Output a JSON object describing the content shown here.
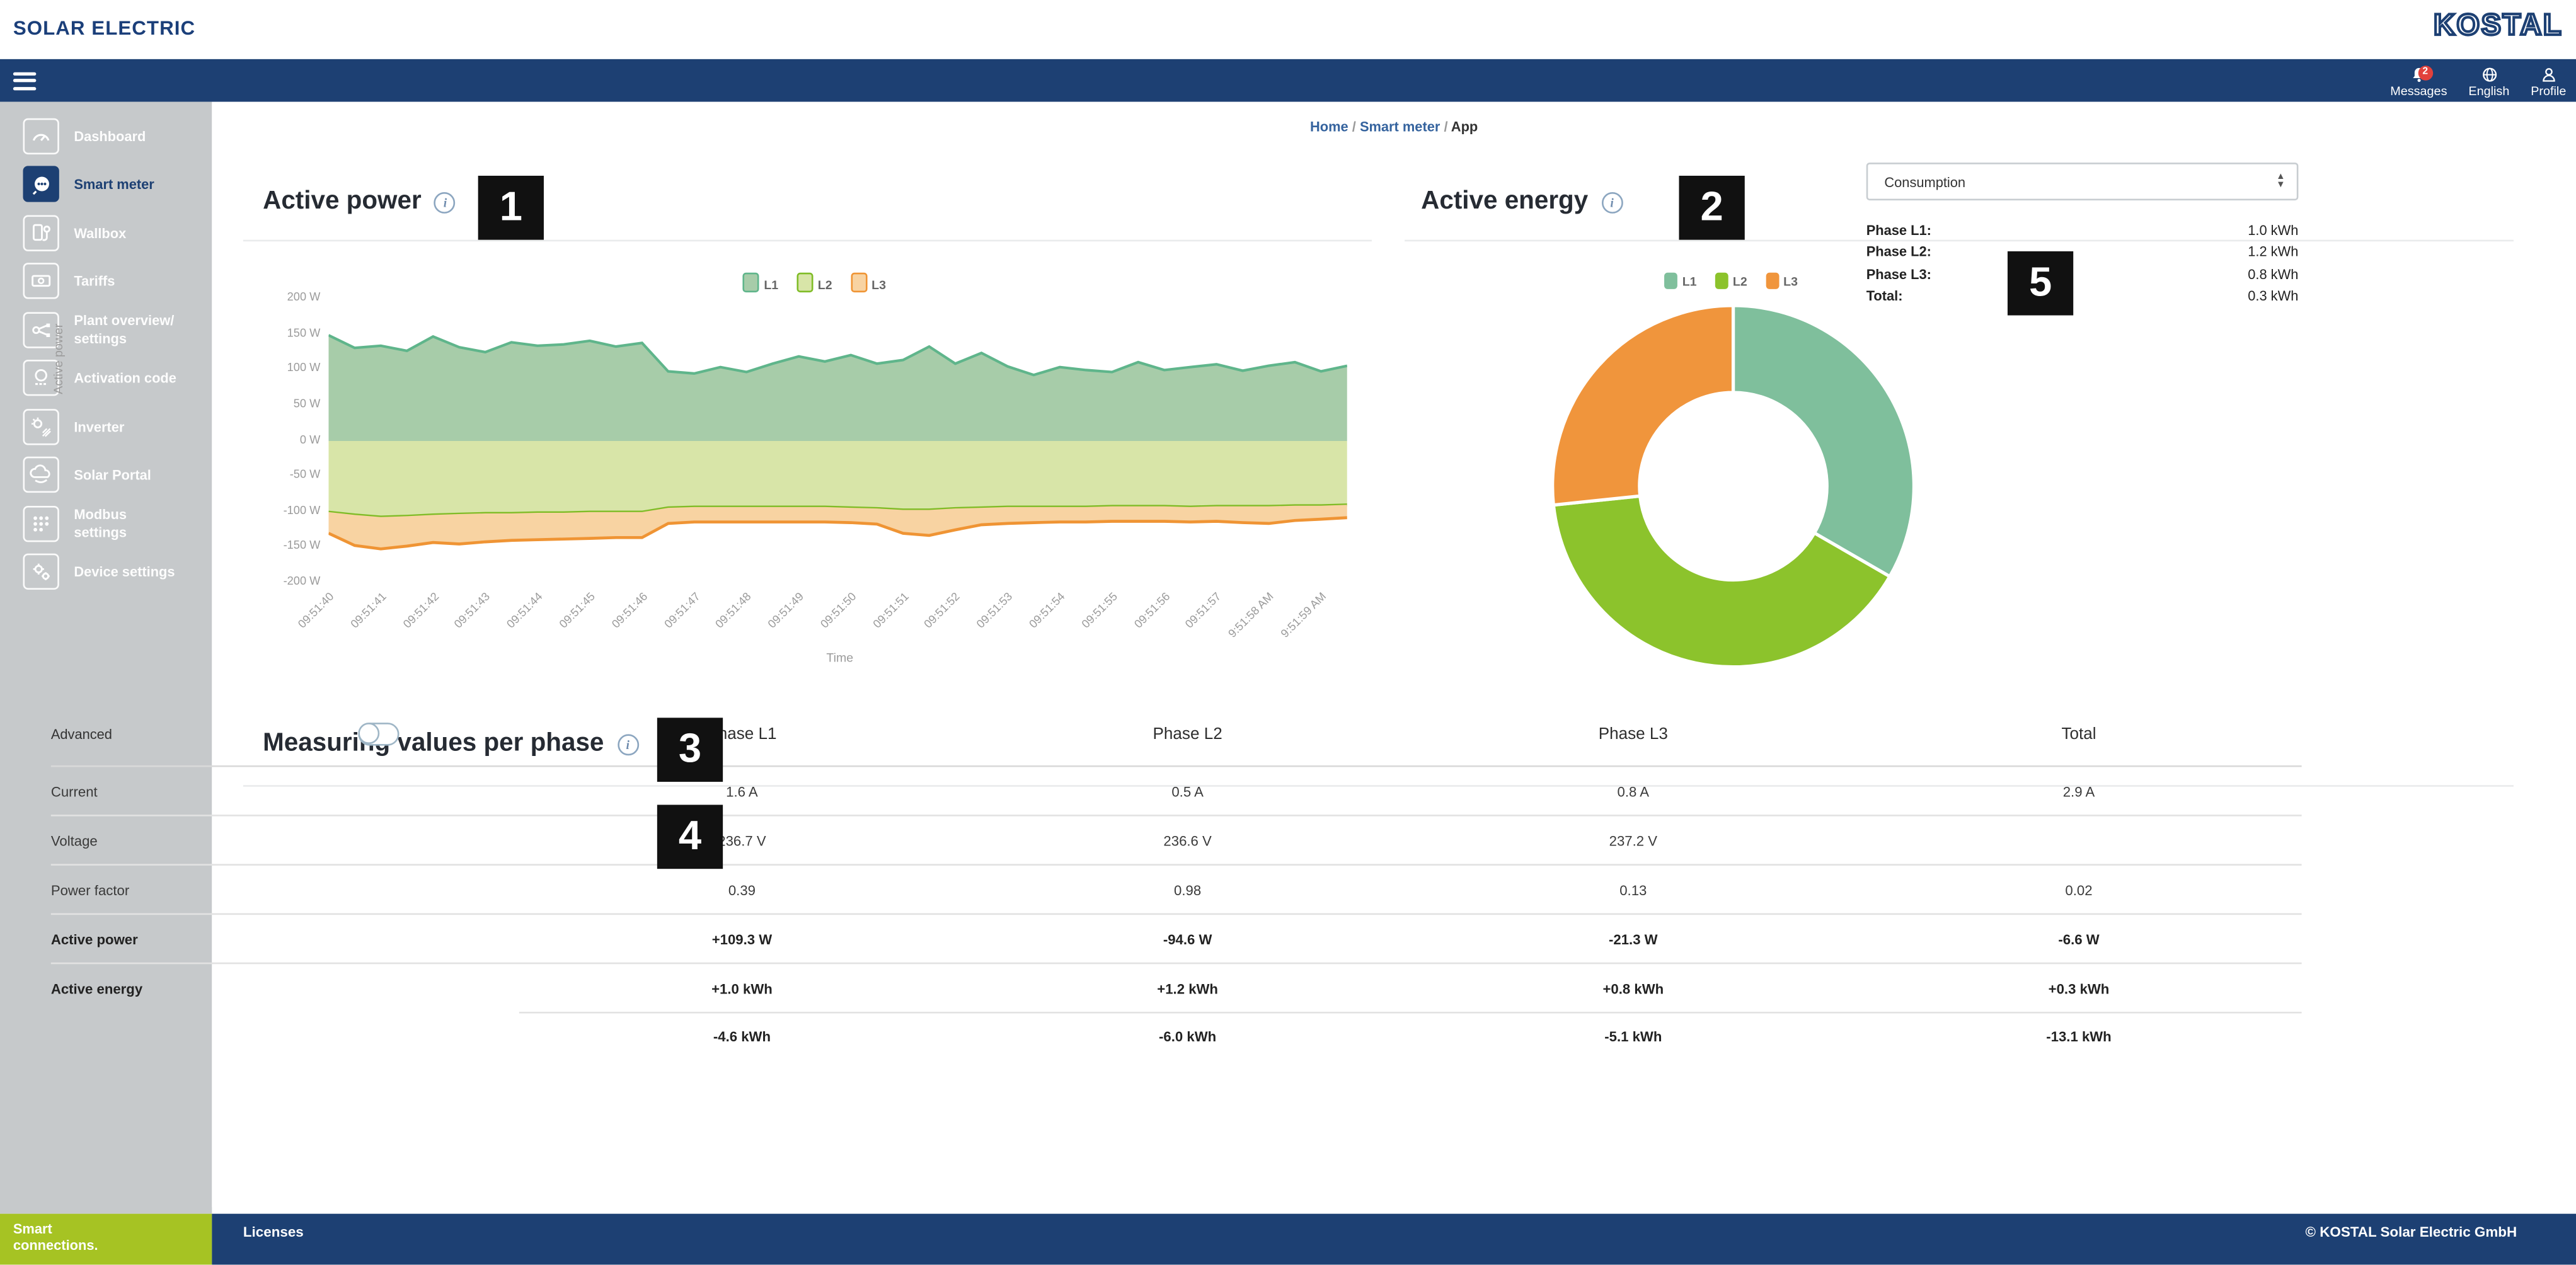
{
  "brand": {
    "logo_left": "SOLAR ELECTRIC",
    "logo_right": "KOSTAL"
  },
  "topbar": {
    "messages": {
      "label": "Messages",
      "badge": "2"
    },
    "language": {
      "label": "English"
    },
    "profile": {
      "label": "Profile"
    }
  },
  "sidebar": {
    "items": [
      {
        "label": "Dashboard",
        "icon": "gauge-icon",
        "active": false
      },
      {
        "label": "Smart meter",
        "icon": "smart-meter-icon",
        "active": true
      },
      {
        "label": "Wallbox",
        "icon": "wallbox-icon",
        "active": false
      },
      {
        "label": "Tariffs",
        "icon": "tariffs-icon",
        "active": false
      },
      {
        "label": "Plant overview/ settings",
        "icon": "plant-overview-icon",
        "active": false
      },
      {
        "label": "Activation code",
        "icon": "activation-code-icon",
        "active": false
      },
      {
        "label": "Inverter",
        "icon": "inverter-icon",
        "active": false
      },
      {
        "label": "Solar Portal",
        "icon": "solar-portal-icon",
        "active": false
      },
      {
        "label": "Modbus settings",
        "icon": "modbus-icon",
        "active": false
      },
      {
        "label": "Device settings",
        "icon": "device-settings-icon",
        "active": false
      }
    ]
  },
  "breadcrumb": {
    "items": [
      "Home",
      "Smart meter",
      "App"
    ],
    "separator": "/"
  },
  "annotations": {
    "n1": "1",
    "n2": "2",
    "n3": "3",
    "n4": "4",
    "n5": "5"
  },
  "active_power_card": {
    "title": "Active power"
  },
  "active_energy_card": {
    "title": "Active energy",
    "select_value": "Consumption",
    "rows": [
      {
        "label": "Phase L1:",
        "value": "1.0 kWh"
      },
      {
        "label": "Phase L2:",
        "value": "1.2 kWh"
      },
      {
        "label": "Phase L3:",
        "value": "0.8 kWh"
      },
      {
        "label": "Total:",
        "value": "0.3 kWh"
      }
    ]
  },
  "measuring_card": {
    "title": "Measuring values per phase",
    "advanced_label": "Advanced",
    "advanced_on": false,
    "columns": [
      "Phase L1",
      "Phase L2",
      "Phase L3",
      "Total"
    ],
    "rows": [
      {
        "label": "Current",
        "values": [
          "1.6 A",
          "0.5 A",
          "0.8 A",
          "2.9 A"
        ],
        "bold": false
      },
      {
        "label": "Voltage",
        "values": [
          "236.7 V",
          "236.6 V",
          "237.2 V",
          ""
        ],
        "bold": false
      },
      {
        "label": "Power factor",
        "values": [
          "0.39",
          "0.98",
          "0.13",
          "0.02"
        ],
        "bold": false
      },
      {
        "label": "Active power",
        "values": [
          "+109.3 W",
          "-94.6 W",
          "-21.3 W",
          "-6.6 W"
        ],
        "bold": true
      },
      {
        "label": "Active energy",
        "values": [
          "+1.0 kWh",
          "+1.2 kWh",
          "+0.8 kWh",
          "+0.3 kWh"
        ],
        "bold": true
      },
      {
        "label": "",
        "values": [
          "-4.6 kWh",
          "-6.0 kWh",
          "-5.1 kWh",
          "-13.1 kWh"
        ],
        "bold": true,
        "partial_border": true
      }
    ]
  },
  "footer": {
    "tagline": "Smart connections.",
    "licenses": "Licenses",
    "copyright": "© KOSTAL Solar Electric GmbH"
  },
  "colors": {
    "app_blue": "#1d4073",
    "sidebar_gray": "#c6c9cb",
    "footer_green": "#a6c323",
    "badge_red": "#e2413c",
    "link_blue": "#35639e",
    "l1_stroke": "#5fb58b",
    "l1_fill": "#a7cca9",
    "l2_stroke": "#7fbc26",
    "l2_fill": "#d8e5a8",
    "l3_stroke": "#ef9434",
    "l3_fill": "#f8d3a2",
    "donut_l1": "#7fbf9c",
    "donut_l2": "#8cc32c",
    "donut_l3": "#f0953c"
  },
  "chart_data": [
    {
      "type": "area",
      "title": "Active power",
      "xlabel": "Time",
      "ylabel": "Active power",
      "ylim": [
        -200,
        200
      ],
      "ytick_labels": [
        "200 W",
        "150 W",
        "100 W",
        "50 W",
        "0 W",
        "-50 W",
        "-100 W",
        "-150 W",
        "-200 W"
      ],
      "x_categories": [
        "09:51:40",
        "09:51:41",
        "09:51:42",
        "09:51:43",
        "09:51:44",
        "09:51:45",
        "09:51:46",
        "09:51:47",
        "09:51:48",
        "09:51:49",
        "09:51:50",
        "09:51:51",
        "09:51:52",
        "09:51:53",
        "09:51:54",
        "09:51:55",
        "09:51:56",
        "09:51:57",
        "9:51:58 AM",
        "9:51:59 AM"
      ],
      "sample_step_seconds": 0.5,
      "stacking": "L1 positive standalone; L2 and L3 stacked below zero",
      "legend": [
        "L1",
        "L2",
        "L3"
      ],
      "grid": false,
      "series": [
        {
          "name": "L1",
          "values": [
            149,
            131,
            134,
            127,
            147,
            132,
            125,
            139,
            134,
            136,
            141,
            133,
            138,
            98,
            95,
            104,
            97,
            109,
            119,
            112,
            121,
            109,
            114,
            133,
            109,
            124,
            105,
            93,
            104,
            100,
            97,
            111,
            100,
            104,
            108,
            99,
            106,
            111,
            98,
            106
          ]
        },
        {
          "name": "L2",
          "values": [
            -100,
            -104,
            -107,
            -106,
            -104,
            -103,
            -102,
            -102,
            -101,
            -101,
            -100,
            -100,
            -100,
            -94,
            -93,
            -93,
            -93,
            -93,
            -93,
            -93,
            -94,
            -95,
            -97,
            -97,
            -95,
            -94,
            -93,
            -93,
            -93,
            -93,
            -92,
            -92,
            -92,
            -93,
            -92,
            -92,
            -92,
            -91,
            -91,
            -90
          ]
        },
        {
          "name": "L3",
          "values": [
            -30,
            -43,
            -45,
            -42,
            -39,
            -42,
            -40,
            -38,
            -38,
            -37,
            -37,
            -36,
            -36,
            -22,
            -21,
            -21,
            -21,
            -21,
            -21,
            -21,
            -21,
            -22,
            -33,
            -36,
            -30,
            -24,
            -23,
            -22,
            -21,
            -21,
            -21,
            -21,
            -21,
            -21,
            -21,
            -23,
            -24,
            -21,
            -19,
            -18
          ]
        }
      ]
    },
    {
      "type": "pie",
      "subtype": "donut",
      "title": "Active energy",
      "legend": [
        "L1",
        "L2",
        "L3"
      ],
      "labels": [
        "L1",
        "L2",
        "L3"
      ],
      "values_kwh": [
        1.0,
        1.2,
        0.8
      ],
      "unit": "kWh",
      "start_angle_deg": 0,
      "direction": "clockwise"
    }
  ]
}
